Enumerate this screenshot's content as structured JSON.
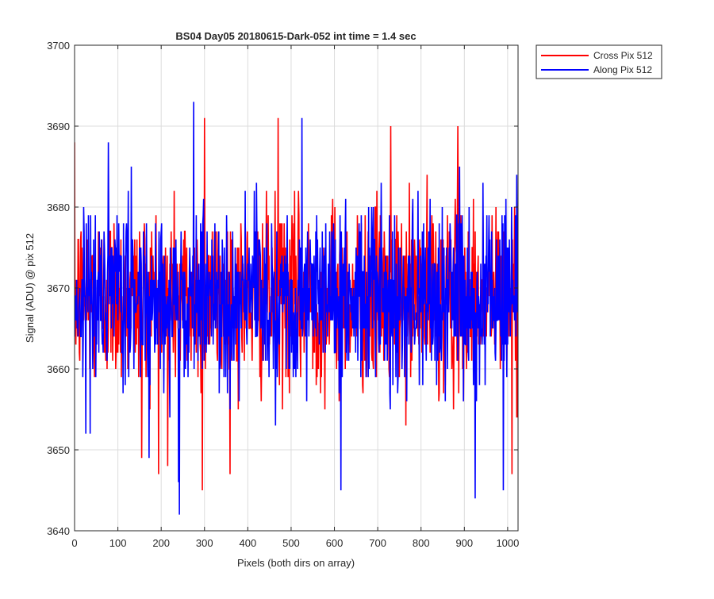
{
  "chart_data": {
    "type": "line",
    "title": "BS04 Day05 20180615-Dark-052 int time = 1.4 sec",
    "xlabel": "Pixels (both dirs on array)",
    "ylabel": "Signal (ADU) @ pix 512",
    "xlim": [
      0,
      1024
    ],
    "ylim": [
      3640,
      3700
    ],
    "xticks": [
      0,
      100,
      200,
      300,
      400,
      500,
      600,
      700,
      800,
      900,
      1000
    ],
    "yticks": [
      3640,
      3650,
      3660,
      3670,
      3680,
      3690,
      3700
    ],
    "grid": true,
    "legend_position": "outside-top-right",
    "series": [
      {
        "name": "Cross Pix 512",
        "color": "#ff0000",
        "description": "Noisy dark-frame signal sampled at every pixel 0–1023; mean ≈ 3669 ADU, typical spread 3656–3682, min ≈ 3645 near x≈295, max ≈ 3691 near x≈300 and x≈470",
        "x_range": [
          0,
          1023
        ],
        "mean": 3669,
        "std": 5.5,
        "anchor_points": [
          {
            "x": 0,
            "y": 3688
          },
          {
            "x": 155,
            "y": 3649
          },
          {
            "x": 215,
            "y": 3648
          },
          {
            "x": 295,
            "y": 3645
          },
          {
            "x": 300,
            "y": 3691
          },
          {
            "x": 470,
            "y": 3691
          },
          {
            "x": 730,
            "y": 3690
          },
          {
            "x": 885,
            "y": 3690
          },
          {
            "x": 1010,
            "y": 3647
          },
          {
            "x": 1023,
            "y": 3654
          }
        ]
      },
      {
        "name": "Along Pix 512",
        "color": "#0000ff",
        "description": "Noisy dark-frame signal sampled at every pixel 0–1023; mean ≈ 3669 ADU, typical spread 3656–3682, min ≈ 3642 near x≈242, max ≈ 3693 near x≈275",
        "x_range": [
          0,
          1023
        ],
        "mean": 3669,
        "std": 5.5,
        "anchor_points": [
          {
            "x": 0,
            "y": 3664
          },
          {
            "x": 240,
            "y": 3646
          },
          {
            "x": 242,
            "y": 3642
          },
          {
            "x": 275,
            "y": 3693
          },
          {
            "x": 525,
            "y": 3691
          },
          {
            "x": 615,
            "y": 3645
          },
          {
            "x": 925,
            "y": 3644
          },
          {
            "x": 990,
            "y": 3645
          },
          {
            "x": 1023,
            "y": 3667
          }
        ]
      }
    ]
  }
}
